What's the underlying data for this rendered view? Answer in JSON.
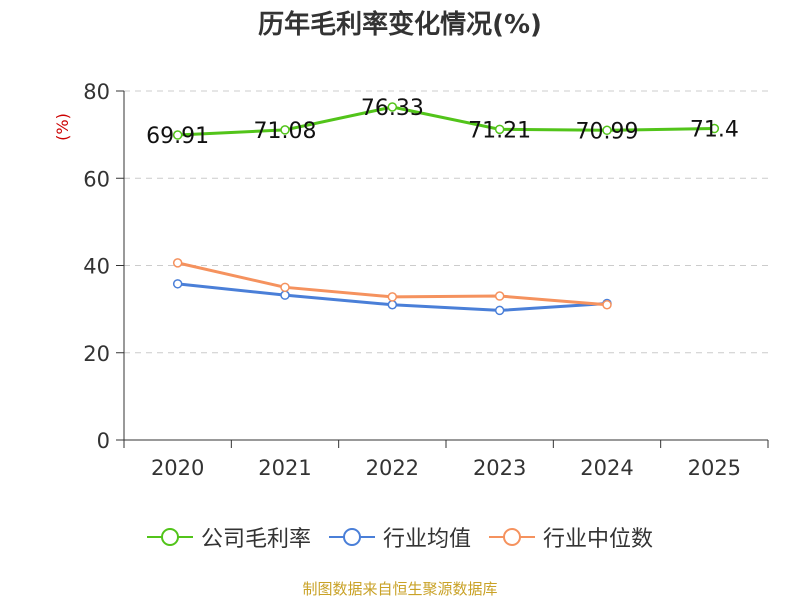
{
  "chart_data": {
    "type": "line",
    "title": "历年毛利率变化情况(%)",
    "ylabel": "(%)",
    "xlabel": "",
    "ylim": [
      0,
      80
    ],
    "yticks": [
      0,
      20,
      40,
      60,
      80
    ],
    "grid": true,
    "legend_position": "bottom",
    "categories": [
      "2020",
      "2021",
      "2022",
      "2023",
      "2024",
      "2025"
    ],
    "series": [
      {
        "name": "公司毛利率",
        "color": "#52c41a",
        "values": [
          69.91,
          71.08,
          76.33,
          71.21,
          70.99,
          71.4
        ],
        "labels": [
          "69.91",
          "71.08",
          "76.33",
          "71.21",
          "70.99",
          "71.4"
        ]
      },
      {
        "name": "行业均值",
        "color": "#4a7fd8",
        "values": [
          35.8,
          33.2,
          31.0,
          29.7,
          31.3,
          null
        ]
      },
      {
        "name": "行业中位数",
        "color": "#f5925e",
        "values": [
          40.6,
          35.0,
          32.8,
          33.0,
          31.0,
          null
        ]
      }
    ],
    "source": "制图数据来自恒生聚源数据库"
  }
}
